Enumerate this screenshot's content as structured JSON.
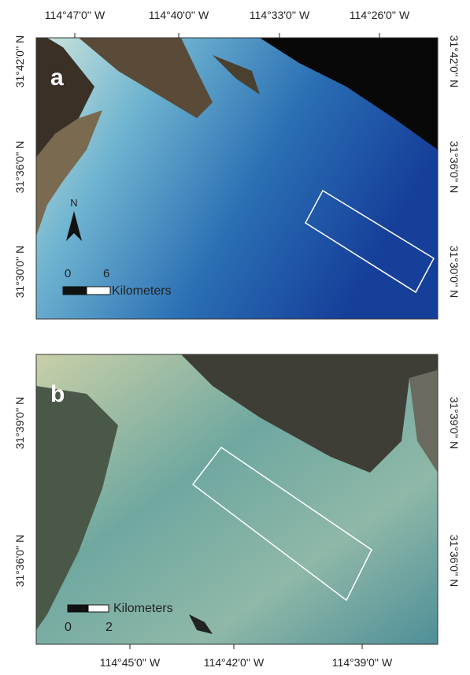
{
  "panels": [
    {
      "label": "a",
      "top_labels": [
        "114°47'0'' W",
        "114°40'0'' W",
        "114°33'0'' W",
        "114°26'0'' W"
      ],
      "left_labels": [
        "31°42'0'' N",
        "31°36'0'' N",
        "31°30'0'' N"
      ],
      "right_labels": [
        "31°42'0'' N",
        "31°36'0'' N",
        "31°30'0'' N"
      ],
      "north": "N",
      "scale": {
        "start": "0",
        "end": "6",
        "unit": "Kilometers"
      }
    },
    {
      "label": "b",
      "left_labels": [
        "31°39'0'' N",
        "31°36'0'' N"
      ],
      "right_labels": [
        "31°39'0'' N",
        "31°36'0'' N"
      ],
      "bottom_labels": [
        "114°45'0'' W",
        "114°42'0'' W",
        "114°39'0'' W"
      ],
      "scale": {
        "start": "0",
        "end": "2",
        "unit": "Kilometers"
      }
    }
  ]
}
